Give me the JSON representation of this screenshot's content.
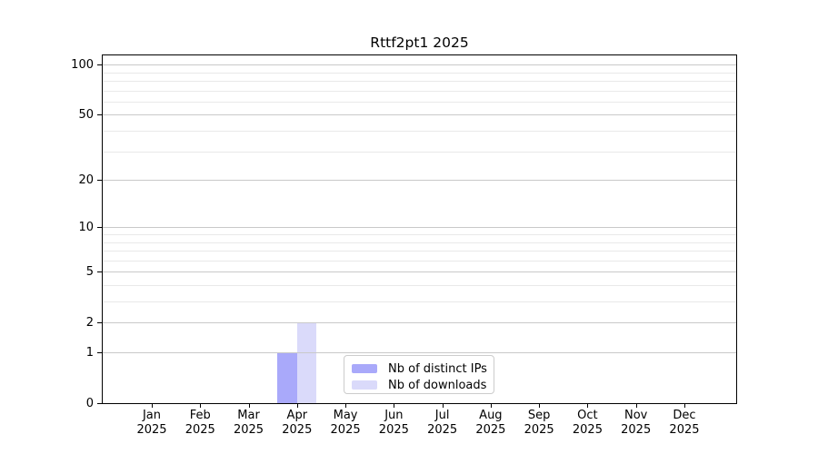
{
  "chart_data": {
    "type": "bar",
    "title": "Rttf2pt1 2025",
    "categories": [
      "Jan",
      "Feb",
      "Mar",
      "Apr",
      "May",
      "Jun",
      "Jul",
      "Aug",
      "Sep",
      "Oct",
      "Nov",
      "Dec"
    ],
    "year": "2025",
    "series": [
      {
        "name": "Nb of distinct IPs",
        "color": "#a9a9fa",
        "values": [
          0,
          0,
          0,
          1,
          0,
          0,
          0,
          0,
          0,
          0,
          0,
          0
        ]
      },
      {
        "name": "Nb of downloads",
        "color": "#dadafa",
        "values": [
          0,
          0,
          0,
          2,
          0,
          0,
          0,
          0,
          0,
          0,
          0,
          0
        ]
      }
    ],
    "y_ticks": [
      0,
      1,
      2,
      5,
      10,
      20,
      50,
      100
    ],
    "y_minor_gridlines": [
      3,
      4,
      6,
      7,
      8,
      9,
      30,
      40,
      60,
      70,
      80,
      90
    ],
    "y_scale": "log10(value+1)",
    "ylim": [
      0,
      113
    ],
    "xlabel": "",
    "ylabel": "",
    "grid": true,
    "legend_position": "lower center"
  },
  "colors": {
    "background": "#ffffff",
    "spine": "#000000",
    "grid_major": "#c9c9c9",
    "grid_minor": "#e9e9e9",
    "text": "#000000",
    "legend_border": "#cccccc"
  }
}
